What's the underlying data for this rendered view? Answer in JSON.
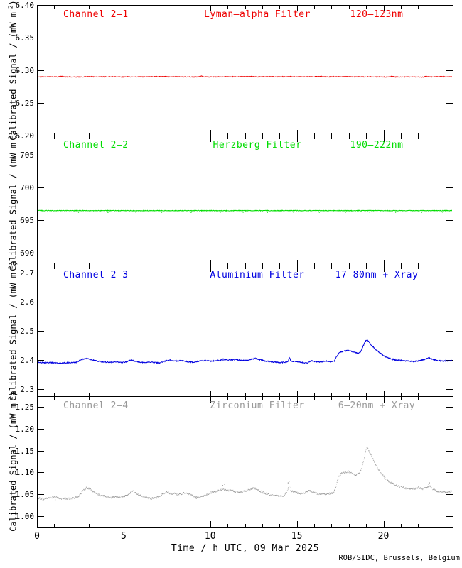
{
  "credit": "ROB/SIDC, Brussels, Belgium",
  "xaxis": {
    "label": "Time / h UTC, 09 Mar 2025",
    "min": 0,
    "max": 24,
    "major_ticks": [
      0,
      5,
      10,
      15,
      20
    ],
    "tick_labels": [
      "0",
      "5",
      "10",
      "15",
      "20"
    ],
    "minor_step": 1
  },
  "ylabel": {
    "pre": "Calibrated Signal / (mW m",
    "sup": "-2",
    "post": ")"
  },
  "chart_data": [
    {
      "type": "line",
      "channel": "Channel 2–1",
      "filter": "Lyman–alpha Filter",
      "band": "120–123nm",
      "color": "#ee0000",
      "ylim": [
        6.2,
        6.4
      ],
      "yticks": [
        6.4,
        6.35,
        6.3,
        6.25,
        6.2
      ],
      "ytick_labels": [
        "6.40",
        "6.35",
        "6.30",
        "6.25",
        "6.20"
      ],
      "y_minor_step": 0.01,
      "style": "line",
      "noise": 0.0005,
      "sample_step": 0.02,
      "points": [
        [
          0,
          6.29
        ],
        [
          1.2,
          6.29
        ],
        [
          1.4,
          6.2906
        ],
        [
          1.6,
          6.29
        ],
        [
          2.5,
          6.2898
        ],
        [
          3.1,
          6.2904
        ],
        [
          3.3,
          6.2899
        ],
        [
          4.4,
          6.2902
        ],
        [
          5.0,
          6.2898
        ],
        [
          5.2,
          6.2905
        ],
        [
          5.4,
          6.2899
        ],
        [
          6.5,
          6.2901
        ],
        [
          7.4,
          6.2905
        ],
        [
          7.7,
          6.2899
        ],
        [
          8.0,
          6.2904
        ],
        [
          8.3,
          6.29
        ],
        [
          9.3,
          6.2898
        ],
        [
          9.5,
          6.2914
        ],
        [
          9.7,
          6.2899
        ],
        [
          10.5,
          6.2901
        ],
        [
          11.6,
          6.2903
        ],
        [
          12.4,
          6.2905
        ],
        [
          12.7,
          6.2899
        ],
        [
          13.5,
          6.2904
        ],
        [
          13.8,
          6.29
        ],
        [
          14.7,
          6.2904
        ],
        [
          15.0,
          6.2899
        ],
        [
          16.4,
          6.2904
        ],
        [
          16.7,
          6.29
        ],
        [
          17.9,
          6.2904
        ],
        [
          18.2,
          6.29
        ],
        [
          19.5,
          6.2901
        ],
        [
          20.3,
          6.2897
        ],
        [
          20.5,
          6.2909
        ],
        [
          20.7,
          6.2898
        ],
        [
          21.5,
          6.29
        ],
        [
          22.3,
          6.2897
        ],
        [
          22.5,
          6.2909
        ],
        [
          22.7,
          6.2898
        ],
        [
          23.3,
          6.2904
        ],
        [
          23.6,
          6.29
        ],
        [
          24,
          6.2901
        ]
      ],
      "extra_dots": []
    },
    {
      "type": "line",
      "channel": "Channel 2–2",
      "filter": "Herzberg Filter",
      "band": "190–222nm",
      "color": "#00dc00",
      "ylim": [
        688,
        708
      ],
      "yticks": [
        705,
        700,
        695,
        690
      ],
      "ytick_labels": [
        "705",
        "700",
        "695",
        "690"
      ],
      "y_minor_step": 1,
      "style": "line",
      "noise": 0.05,
      "sample_step": 0.02,
      "points": [
        [
          0,
          696.45
        ],
        [
          24,
          696.45
        ]
      ],
      "extra_dots": [
        [
          2.4,
          696.2
        ],
        [
          4.1,
          696.18
        ],
        [
          5.7,
          696.22
        ],
        [
          7.2,
          696.2
        ],
        [
          8.9,
          696.17
        ],
        [
          10.6,
          696.22
        ],
        [
          11.9,
          696.2
        ],
        [
          13.3,
          696.18
        ],
        [
          14.8,
          696.22
        ],
        [
          16.3,
          696.2
        ],
        [
          17.8,
          696.18
        ],
        [
          19.2,
          696.22
        ],
        [
          20.7,
          696.2
        ],
        [
          22.2,
          696.18
        ],
        [
          23.4,
          696.22
        ]
      ]
    },
    {
      "type": "line",
      "channel": "Channel 2–3",
      "filter": "Aluminium Filter",
      "band": "17–80nm + Xray",
      "color": "#0000e0",
      "ylim": [
        2.275,
        2.725
      ],
      "yticks": [
        2.7,
        2.6,
        2.5,
        2.4,
        2.3
      ],
      "ytick_labels": [
        "2.7",
        "2.6",
        "2.5",
        "2.4",
        "2.3"
      ],
      "y_minor_step": 0.02,
      "style": "line",
      "noise": 0.0018,
      "sample_step": 0.02,
      "points": [
        [
          0,
          2.392
        ],
        [
          0.4,
          2.39
        ],
        [
          0.8,
          2.391
        ],
        [
          1.2,
          2.389
        ],
        [
          1.6,
          2.39
        ],
        [
          2.0,
          2.391
        ],
        [
          2.3,
          2.392
        ],
        [
          2.55,
          2.401
        ],
        [
          2.8,
          2.405
        ],
        [
          3.0,
          2.403
        ],
        [
          3.3,
          2.398
        ],
        [
          3.7,
          2.394
        ],
        [
          4.1,
          2.392
        ],
        [
          4.5,
          2.393
        ],
        [
          4.9,
          2.391
        ],
        [
          5.2,
          2.394
        ],
        [
          5.45,
          2.4
        ],
        [
          5.6,
          2.396
        ],
        [
          5.9,
          2.392
        ],
        [
          6.2,
          2.391
        ],
        [
          6.5,
          2.393
        ],
        [
          6.8,
          2.391
        ],
        [
          7.1,
          2.39
        ],
        [
          7.45,
          2.397
        ],
        [
          7.7,
          2.399
        ],
        [
          8.0,
          2.396
        ],
        [
          8.3,
          2.398
        ],
        [
          8.6,
          2.395
        ],
        [
          9.0,
          2.392
        ],
        [
          9.4,
          2.396
        ],
        [
          9.7,
          2.398
        ],
        [
          10.0,
          2.396
        ],
        [
          10.3,
          2.397
        ],
        [
          10.6,
          2.399
        ],
        [
          10.9,
          2.401
        ],
        [
          11.2,
          2.4
        ],
        [
          11.5,
          2.401
        ],
        [
          11.8,
          2.399
        ],
        [
          12.1,
          2.398
        ],
        [
          12.4,
          2.403
        ],
        [
          12.6,
          2.405
        ],
        [
          12.9,
          2.4
        ],
        [
          13.2,
          2.396
        ],
        [
          13.6,
          2.393
        ],
        [
          14.0,
          2.391
        ],
        [
          14.3,
          2.392
        ],
        [
          14.5,
          2.394
        ],
        [
          14.57,
          2.41
        ],
        [
          14.65,
          2.395
        ],
        [
          15.0,
          2.394
        ],
        [
          15.3,
          2.391
        ],
        [
          15.6,
          2.389
        ],
        [
          15.85,
          2.397
        ],
        [
          16.1,
          2.394
        ],
        [
          16.4,
          2.393
        ],
        [
          16.65,
          2.397
        ],
        [
          16.9,
          2.394
        ],
        [
          17.15,
          2.395
        ],
        [
          17.3,
          2.412
        ],
        [
          17.45,
          2.425
        ],
        [
          17.6,
          2.429
        ],
        [
          17.8,
          2.431
        ],
        [
          18.0,
          2.432
        ],
        [
          18.2,
          2.429
        ],
        [
          18.4,
          2.425
        ],
        [
          18.55,
          2.423
        ],
        [
          18.7,
          2.43
        ],
        [
          18.85,
          2.45
        ],
        [
          18.95,
          2.464
        ],
        [
          19.05,
          2.469
        ],
        [
          19.15,
          2.463
        ],
        [
          19.3,
          2.451
        ],
        [
          19.5,
          2.439
        ],
        [
          19.7,
          2.429
        ],
        [
          19.9,
          2.419
        ],
        [
          20.1,
          2.411
        ],
        [
          20.4,
          2.404
        ],
        [
          20.7,
          2.4
        ],
        [
          21.0,
          2.398
        ],
        [
          21.4,
          2.396
        ],
        [
          21.8,
          2.395
        ],
        [
          22.1,
          2.397
        ],
        [
          22.4,
          2.402
        ],
        [
          22.6,
          2.407
        ],
        [
          22.8,
          2.403
        ],
        [
          23.1,
          2.398
        ],
        [
          23.5,
          2.396
        ],
        [
          24,
          2.398
        ]
      ],
      "extra_dots": [
        [
          14.55,
          2.413
        ],
        [
          10.75,
          2.404
        ]
      ]
    },
    {
      "type": "scatter",
      "channel": "Channel 2–4",
      "filter": "Zirconium Filter",
      "band": "6–20nm + Xray",
      "color": "#999999",
      "ylim": [
        0.975,
        1.275
      ],
      "yticks": [
        1.25,
        1.2,
        1.15,
        1.1,
        1.05,
        1.0
      ],
      "ytick_labels": [
        "1.25",
        "1.20",
        "1.15",
        "1.10",
        "1.05",
        "1.00"
      ],
      "y_minor_step": 0.01,
      "style": "dots",
      "noise": 0.002,
      "sample_step": 0.025,
      "points": [
        [
          0,
          1.041
        ],
        [
          0.4,
          1.039
        ],
        [
          0.8,
          1.042
        ],
        [
          1.1,
          1.043
        ],
        [
          1.4,
          1.04
        ],
        [
          1.8,
          1.04
        ],
        [
          2.1,
          1.041
        ],
        [
          2.4,
          1.046
        ],
        [
          2.65,
          1.058
        ],
        [
          2.85,
          1.065
        ],
        [
          3.05,
          1.061
        ],
        [
          3.3,
          1.054
        ],
        [
          3.6,
          1.048
        ],
        [
          3.9,
          1.045
        ],
        [
          4.2,
          1.042
        ],
        [
          4.5,
          1.044
        ],
        [
          4.8,
          1.043
        ],
        [
          5.1,
          1.046
        ],
        [
          5.35,
          1.053
        ],
        [
          5.55,
          1.057
        ],
        [
          5.75,
          1.05
        ],
        [
          6.0,
          1.046
        ],
        [
          6.3,
          1.042
        ],
        [
          6.6,
          1.04
        ],
        [
          6.9,
          1.042
        ],
        [
          7.2,
          1.049
        ],
        [
          7.45,
          1.056
        ],
        [
          7.65,
          1.052
        ],
        [
          7.9,
          1.051
        ],
        [
          8.2,
          1.049
        ],
        [
          8.5,
          1.053
        ],
        [
          8.75,
          1.05
        ],
        [
          9.0,
          1.046
        ],
        [
          9.3,
          1.042
        ],
        [
          9.6,
          1.046
        ],
        [
          9.9,
          1.051
        ],
        [
          10.2,
          1.056
        ],
        [
          10.5,
          1.058
        ],
        [
          10.75,
          1.062
        ],
        [
          10.95,
          1.058
        ],
        [
          11.15,
          1.06
        ],
        [
          11.4,
          1.056
        ],
        [
          11.7,
          1.054
        ],
        [
          12.0,
          1.057
        ],
        [
          12.3,
          1.062
        ],
        [
          12.5,
          1.065
        ],
        [
          12.7,
          1.06
        ],
        [
          13.0,
          1.054
        ],
        [
          13.3,
          1.05
        ],
        [
          13.6,
          1.047
        ],
        [
          13.9,
          1.046
        ],
        [
          14.2,
          1.045
        ],
        [
          14.45,
          1.058
        ],
        [
          14.55,
          1.07
        ],
        [
          14.65,
          1.057
        ],
        [
          14.9,
          1.054
        ],
        [
          15.2,
          1.051
        ],
        [
          15.5,
          1.053
        ],
        [
          15.7,
          1.058
        ],
        [
          15.9,
          1.054
        ],
        [
          16.2,
          1.051
        ],
        [
          16.5,
          1.05
        ],
        [
          16.8,
          1.051
        ],
        [
          17.1,
          1.053
        ],
        [
          17.25,
          1.07
        ],
        [
          17.4,
          1.09
        ],
        [
          17.55,
          1.098
        ],
        [
          17.75,
          1.1
        ],
        [
          17.95,
          1.102
        ],
        [
          18.15,
          1.098
        ],
        [
          18.35,
          1.094
        ],
        [
          18.55,
          1.097
        ],
        [
          18.7,
          1.105
        ],
        [
          18.85,
          1.13
        ],
        [
          18.95,
          1.15
        ],
        [
          19.05,
          1.156
        ],
        [
          19.15,
          1.149
        ],
        [
          19.3,
          1.136
        ],
        [
          19.45,
          1.124
        ],
        [
          19.65,
          1.11
        ],
        [
          19.85,
          1.098
        ],
        [
          20.05,
          1.088
        ],
        [
          20.3,
          1.079
        ],
        [
          20.6,
          1.072
        ],
        [
          20.9,
          1.068
        ],
        [
          21.2,
          1.064
        ],
        [
          21.5,
          1.062
        ],
        [
          21.8,
          1.063
        ],
        [
          22.0,
          1.066
        ],
        [
          22.2,
          1.062
        ],
        [
          22.45,
          1.064
        ],
        [
          22.65,
          1.07
        ],
        [
          22.85,
          1.061
        ],
        [
          23.1,
          1.057
        ],
        [
          23.4,
          1.055
        ],
        [
          23.7,
          1.054
        ],
        [
          24,
          1.057
        ]
      ],
      "extra_dots": [
        [
          10.72,
          1.07
        ],
        [
          10.82,
          1.073
        ],
        [
          14.5,
          1.076
        ],
        [
          14.55,
          1.079
        ],
        [
          22.6,
          1.073
        ],
        [
          22.66,
          1.076
        ],
        [
          0.35,
          1.036
        ],
        [
          1.05,
          1.037
        ],
        [
          9.2,
          1.04
        ]
      ]
    }
  ]
}
